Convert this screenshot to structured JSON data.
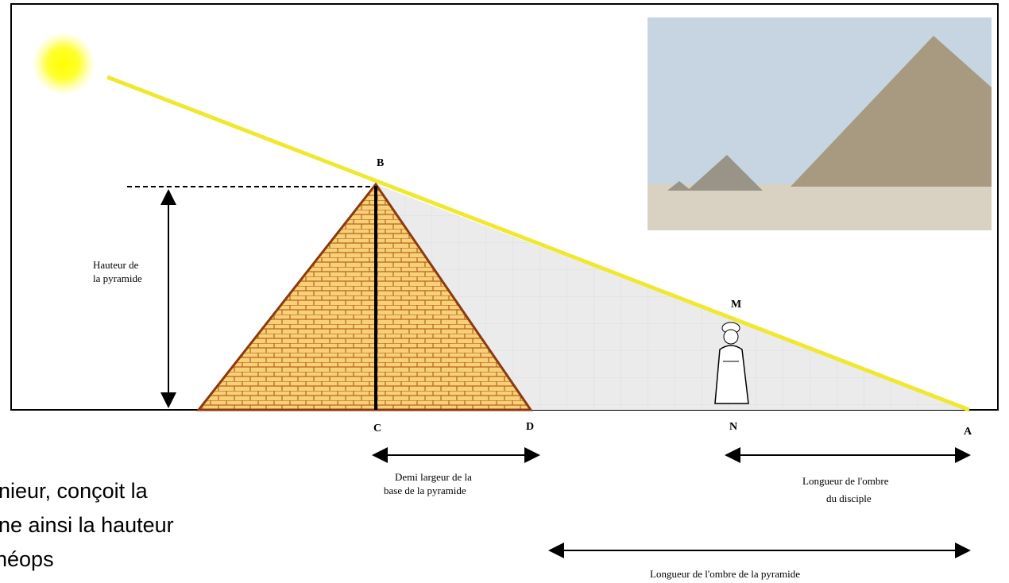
{
  "points": {
    "B": "B",
    "C": "C",
    "D": "D",
    "N": "N",
    "A": "A",
    "M": "M"
  },
  "labels": {
    "height": [
      "Hauteur de",
      "la pyramide"
    ],
    "half_base": [
      "Demi largeur de la",
      "base de la pyramide"
    ],
    "disciple_shadow": [
      "Longueur de l'ombre",
      "du disciple"
    ],
    "pyramid_shadow": "Longueur de l'ombre de la pyramide"
  },
  "caption": [
    "nieur, conçoit la",
    "ne ainsi la hauteur",
    "néops"
  ]
}
